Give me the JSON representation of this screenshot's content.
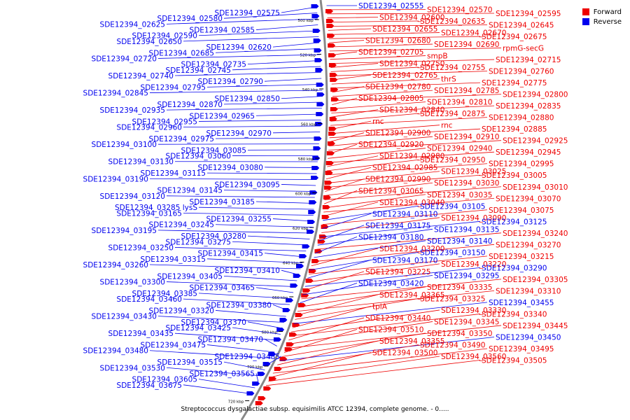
{
  "legend": [
    {
      "label": "Forward",
      "color": "#ee0000"
    },
    {
      "label": "Reverse",
      "color": "#0000ee"
    }
  ],
  "colors": {
    "forward": "#ee0000",
    "reverse": "#0000ee",
    "backbone": "#888888"
  },
  "caption": "Streptococcus dysgalactiae subsp. equisimilis ATCC 12394, complete genome. - 0.....",
  "ticks": [
    "500 kbp",
    "520 kbp",
    "540 kbp",
    "560 kbp",
    "580 kbp",
    "600 kbp",
    "620 kbp",
    "640 kbp",
    "660 kbp",
    "680 kbp",
    "700 kbp",
    "720 kbp"
  ],
  "left_labels": [
    "SDE12394_02575",
    "SDE12394_02580",
    "SDE12394_02625",
    "SDE12394_02585",
    "SDE12394_02590",
    "SDE12394_02650",
    "SDE12394_02620",
    "SDE12394_02685",
    "SDE12394_02720",
    "SDE12394_02735",
    "SDE12394_02745",
    "SDE12394_02740",
    "SDE12394_02790",
    "SDE12394_02795",
    "SDE12394_02845",
    "SDE12394_02850",
    "SDE12394_02870",
    "SDE12394_02935",
    "SDE12394_02965",
    "SDE12394_02955",
    "SDE12394_02960",
    "SDE12394_02970",
    "SDE12394_02975",
    "SDE12394_03100",
    "SDE12394_03085",
    "SDE12394_03060",
    "SDE12394_03130",
    "SDE12394_03080",
    "SDE12394_03115",
    "SDE12394_03190",
    "SDE12394_03095",
    "SDE12394_03145",
    "SDE12394_03120",
    "SDE12394_03185",
    "SDE12394_03285 lysS",
    "SDE12394_03165",
    "SDE12394_03255",
    "SDE12394_03245",
    "SDE12394_03195",
    "SDE12394_03280",
    "SDE12394_03275",
    "SDE12394_03250",
    "SDE12394_03415",
    "SDE12394_03315",
    "SDE12394_03260",
    "SDE12394_03410",
    "SDE12394_03405",
    "SDE12394_03300",
    "SDE12394_03465",
    "SDE12394_03385",
    "SDE12394_03460",
    "SDE12394_03380",
    "SDE12394_03320",
    "SDE12394_03430",
    "SDE12394_03370",
    "SDE12394_03425",
    "SDE12394_03435",
    "SDE12394_03470",
    "SDE12394_03475",
    "SDE12394_03480",
    "SDE12394_03485",
    "SDE12394_03515",
    "SDE12394_03530",
    "SDE12394_03565",
    "SDE12394_03605",
    "SDE12394_03675"
  ],
  "right_labels": [
    {
      "text": "SDE12394_02555",
      "c": "reverse"
    },
    {
      "text": "SDE12394_02570",
      "c": "forward"
    },
    {
      "text": "SDE12394_02595",
      "c": "forward"
    },
    {
      "text": "SDE12394_02600",
      "c": "forward"
    },
    {
      "text": "SDE12394_02635",
      "c": "forward"
    },
    {
      "text": "SDE12394_02645",
      "c": "forward"
    },
    {
      "text": "SDE12394_02655",
      "c": "forward"
    },
    {
      "text": "SDE12394_02670",
      "c": "forward"
    },
    {
      "text": "SDE12394_02675",
      "c": "forward"
    },
    {
      "text": "SDE12394_02680",
      "c": "forward"
    },
    {
      "text": "SDE12394_02690",
      "c": "forward"
    },
    {
      "text": "rpmG-secG",
      "c": "forward"
    },
    {
      "text": "SDE12394_02705",
      "c": "forward"
    },
    {
      "text": "smpB",
      "c": "forward"
    },
    {
      "text": "SDE12394_02715",
      "c": "forward"
    },
    {
      "text": "SDE12394_02750",
      "c": "forward"
    },
    {
      "text": "SDE12394_02755",
      "c": "forward"
    },
    {
      "text": "SDE12394_02760",
      "c": "forward"
    },
    {
      "text": "SDE12394_02765",
      "c": "forward"
    },
    {
      "text": "thrS",
      "c": "forward"
    },
    {
      "text": "SDE12394_02775",
      "c": "forward"
    },
    {
      "text": "SDE12394_02780",
      "c": "forward"
    },
    {
      "text": "SDE12394_02785",
      "c": "forward"
    },
    {
      "text": "SDE12394_02800",
      "c": "forward"
    },
    {
      "text": "SDE12394_02805",
      "c": "forward"
    },
    {
      "text": "SDE12394_02810",
      "c": "forward"
    },
    {
      "text": "SDE12394_02835",
      "c": "forward"
    },
    {
      "text": "SDE12394_02840",
      "c": "forward"
    },
    {
      "text": "SDE12394_02875",
      "c": "forward"
    },
    {
      "text": "SDE12394_02880",
      "c": "forward"
    },
    {
      "text": "rnc",
      "c": "forward"
    },
    {
      "text": "rnc",
      "c": "forward"
    },
    {
      "text": "SDE12394_02885",
      "c": "forward"
    },
    {
      "text": "SDE12394_02900",
      "c": "forward"
    },
    {
      "text": "SDE12394_02910",
      "c": "forward"
    },
    {
      "text": "SDE12394_02925",
      "c": "forward"
    },
    {
      "text": "SDE12394_02920",
      "c": "forward"
    },
    {
      "text": "SDE12394_02940",
      "c": "forward"
    },
    {
      "text": "SDE12394_02945",
      "c": "forward"
    },
    {
      "text": "SDE12394_02980",
      "c": "forward"
    },
    {
      "text": "SDE12394_02950",
      "c": "forward"
    },
    {
      "text": "SDE12394_02995",
      "c": "forward"
    },
    {
      "text": "SDE12394_02985",
      "c": "forward"
    },
    {
      "text": "SDE12394_03025",
      "c": "forward"
    },
    {
      "text": "SDE12394_03005",
      "c": "forward"
    },
    {
      "text": "SDE12394_02990",
      "c": "forward"
    },
    {
      "text": "SDE12394_03030",
      "c": "forward"
    },
    {
      "text": "SDE12394_03010",
      "c": "forward"
    },
    {
      "text": "SDE12394_03065",
      "c": "forward"
    },
    {
      "text": "SDE12394_03035",
      "c": "forward"
    },
    {
      "text": "SDE12394_03070",
      "c": "forward"
    },
    {
      "text": "SDE12394_03040",
      "c": "forward"
    },
    {
      "text": "SDE12394_03105",
      "c": "reverse"
    },
    {
      "text": "SDE12394_03075",
      "c": "forward"
    },
    {
      "text": "SDE12394_03110",
      "c": "reverse"
    },
    {
      "text": "SDE12394_03090",
      "c": "forward"
    },
    {
      "text": "SDE12394_03125",
      "c": "reverse"
    },
    {
      "text": "SDE12394_03175",
      "c": "reverse"
    },
    {
      "text": "SDE12394_03135",
      "c": "reverse"
    },
    {
      "text": "SDE12394_03240",
      "c": "forward"
    },
    {
      "text": "SDE12394_03180",
      "c": "reverse"
    },
    {
      "text": "SDE12394_03140",
      "c": "reverse"
    },
    {
      "text": "SDE12394_03270",
      "c": "forward"
    },
    {
      "text": "SDE12394_03200",
      "c": "forward"
    },
    {
      "text": "SDE12394_03150",
      "c": "reverse"
    },
    {
      "text": "SDE12394_03215",
      "c": "forward"
    },
    {
      "text": "SDE12394_03170",
      "c": "reverse"
    },
    {
      "text": "SDE12394_03220",
      "c": "forward"
    },
    {
      "text": "SDE12394_03290",
      "c": "reverse"
    },
    {
      "text": "SDE12394_03225",
      "c": "forward"
    },
    {
      "text": "SDE12394_03295",
      "c": "reverse"
    },
    {
      "text": "SDE12394_03305",
      "c": "forward"
    },
    {
      "text": "SDE12394_03420",
      "c": "reverse"
    },
    {
      "text": "SDE12394_03335",
      "c": "forward"
    },
    {
      "text": "SDE12394_03310",
      "c": "forward"
    },
    {
      "text": "SDE12394_03365",
      "c": "forward"
    },
    {
      "text": "SDE12394_03325",
      "c": "forward"
    },
    {
      "text": "SDE12394_03455",
      "c": "reverse"
    },
    {
      "text": "tpiA",
      "c": "forward"
    },
    {
      "text": "SDE12394_03330",
      "c": "forward"
    },
    {
      "text": "SDE12394_03340",
      "c": "forward"
    },
    {
      "text": "SDE12394_03440",
      "c": "forward"
    },
    {
      "text": "SDE12394_03345",
      "c": "forward"
    },
    {
      "text": "SDE12394_03445",
      "c": "forward"
    },
    {
      "text": "SDE12394_03510",
      "c": "forward"
    },
    {
      "text": "SDE12394_03350",
      "c": "forward"
    },
    {
      "text": "SDE12394_03450",
      "c": "reverse"
    },
    {
      "text": "SDE12394_03355",
      "c": "forward"
    },
    {
      "text": "SDE12394_03490",
      "c": "forward"
    },
    {
      "text": "SDE12394_03495",
      "c": "forward"
    },
    {
      "text": "SDE12394_03500",
      "c": "forward"
    },
    {
      "text": "SDE12394_03560",
      "c": "forward"
    },
    {
      "text": "SDE12394_03505",
      "c": "forward"
    }
  ]
}
